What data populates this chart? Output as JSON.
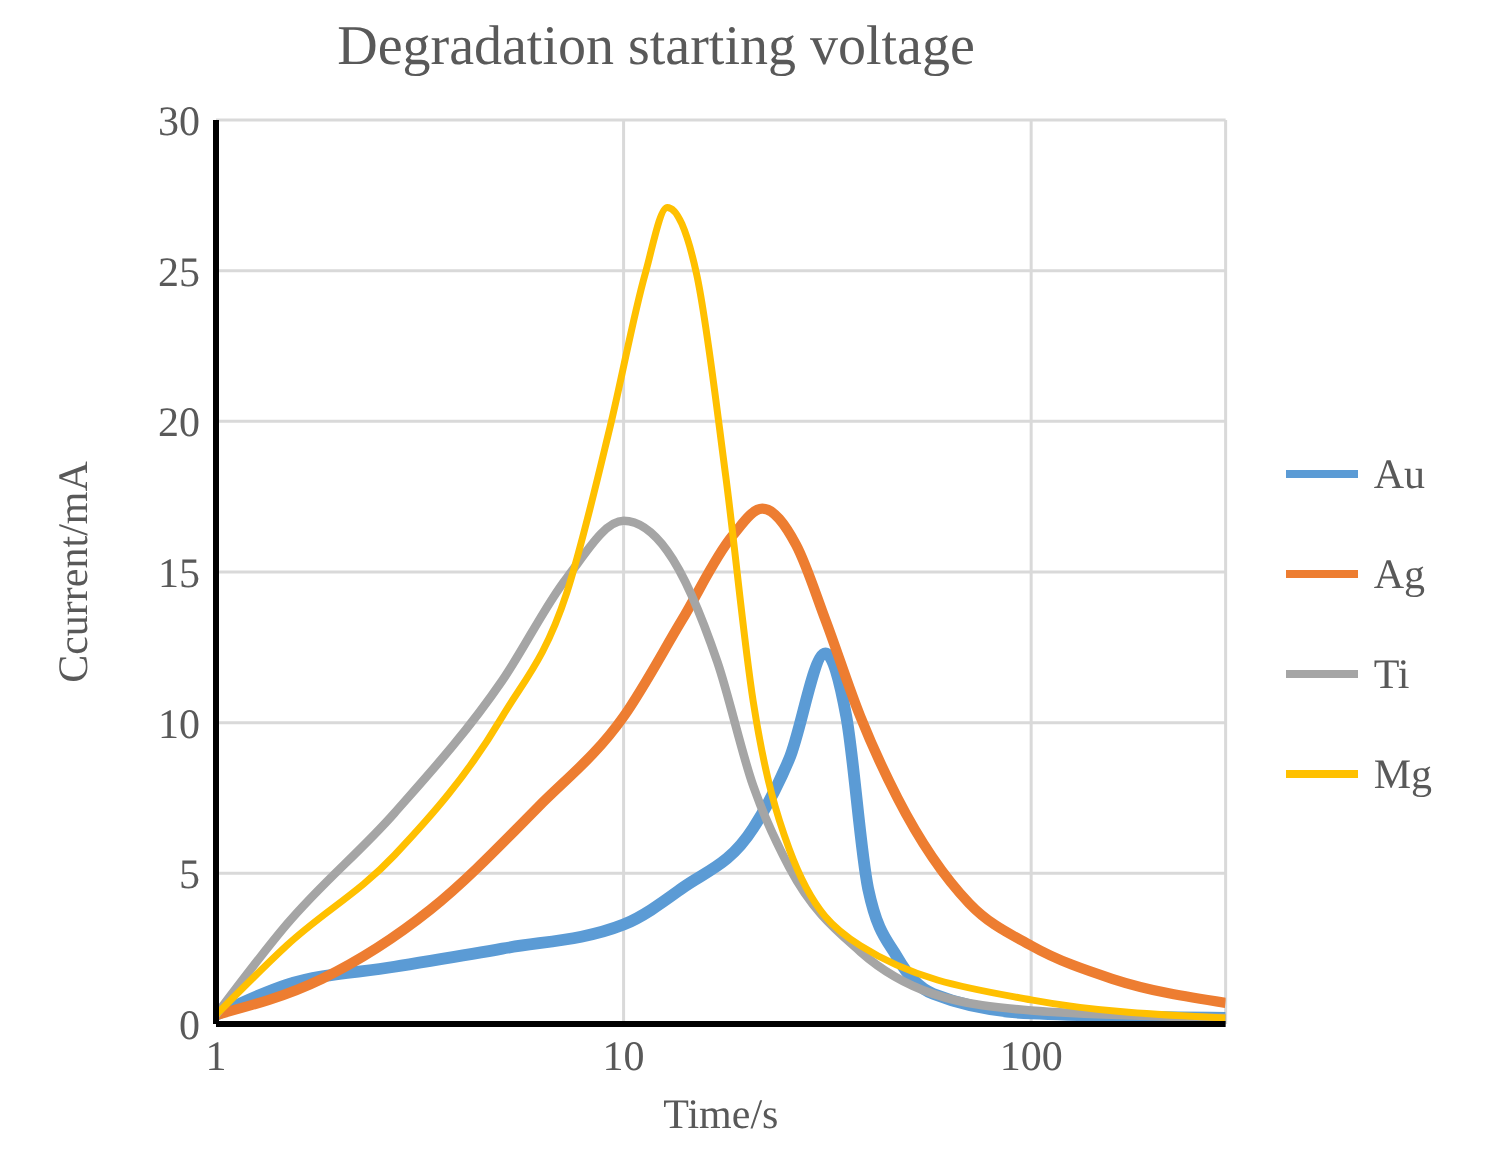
{
  "chart_data": {
    "type": "line",
    "title": "Degradation starting voltage",
    "xlabel": "Time/s",
    "ylabel": "Ccurrent/mA",
    "log": "x",
    "xlim": [
      1,
      300
    ],
    "xticks": [
      1,
      10,
      100
    ],
    "ylim": [
      0,
      30
    ],
    "yticks": [
      0,
      5,
      10,
      15,
      20,
      25,
      30
    ],
    "grid": true,
    "legend": "right",
    "marker": "none",
    "line_style": "solid",
    "series": [
      {
        "name": "Au",
        "color": "#5b9bd5",
        "x": [
          1,
          1.49,
          2.74,
          5.04,
          10,
          13.9,
          20.8,
          25.5,
          31.3,
          35.2,
          39.8,
          47,
          57.5,
          100,
          300
        ],
        "values": [
          0.3,
          1.3,
          1.9,
          2.5,
          3.3,
          4.5,
          6.5,
          8.8,
          12.3,
          10.2,
          4.5,
          2.2,
          1.0,
          0.35,
          0.2
        ]
      },
      {
        "name": "Ag",
        "color": "#ed7d31",
        "x": [
          1,
          1.82,
          3.36,
          6.17,
          10,
          13.9,
          18.5,
          21.9,
          26.5,
          31.3,
          38.1,
          47,
          70.5,
          100,
          158,
          300
        ],
        "values": [
          0.3,
          1.5,
          3.8,
          7.2,
          10.2,
          13.4,
          16.2,
          17.1,
          15.9,
          13.4,
          10.2,
          7.5,
          4.0,
          2.6,
          1.5,
          0.7
        ]
      },
      {
        "name": "Ti",
        "color": "#a5a5a5",
        "x": [
          1,
          1.49,
          2.74,
          5.04,
          7.25,
          10,
          12.8,
          17,
          20.8,
          25.5,
          38.1,
          57.5,
          100,
          300
        ],
        "values": [
          0.3,
          3.3,
          7.0,
          11.4,
          14.8,
          16.7,
          15.7,
          12.0,
          7.9,
          5.2,
          2.4,
          1.0,
          0.45,
          0.2
        ]
      },
      {
        "name": "Mg",
        "color": "#ffc000",
        "x": [
          1,
          1.49,
          2.74,
          5.04,
          7.25,
          9.26,
          11.3,
          12.8,
          15.1,
          17.8,
          20.8,
          25.5,
          38.1,
          100,
          300
        ],
        "values": [
          0.3,
          2.6,
          5.6,
          10.2,
          14.3,
          19.8,
          24.9,
          27.1,
          24.9,
          18.2,
          10.7,
          5.8,
          2.6,
          0.8,
          0.2
        ]
      }
    ]
  }
}
